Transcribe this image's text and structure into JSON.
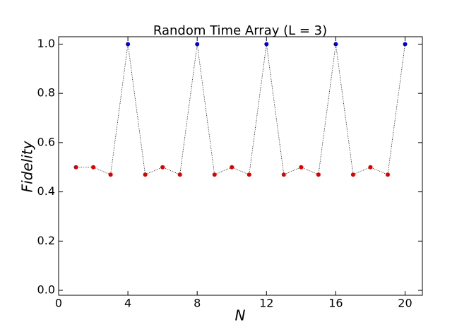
{
  "chart_data": {
    "type": "line",
    "title": "Random Time Array (L = 3)",
    "x_label": "N",
    "y_label": "Fidelity",
    "x": [
      1,
      2,
      3,
      4,
      5,
      6,
      7,
      8,
      9,
      10,
      11,
      12,
      13,
      14,
      15,
      16,
      17,
      18,
      19,
      20
    ],
    "series": [
      {
        "line_color": "#000000",
        "values": [
          0.5,
          0.5,
          0.47,
          1.0,
          0.47,
          0.5,
          0.47,
          1.0,
          0.47,
          0.5,
          0.47,
          1.0,
          0.47,
          0.5,
          0.47,
          1.0,
          0.47,
          0.5,
          0.47,
          1.0
        ],
        "point_colors": [
          "#dd0000",
          "#dd0000",
          "#dd0000",
          "#0000dd",
          "#dd0000",
          "#dd0000",
          "#dd0000",
          "#0000dd",
          "#dd0000",
          "#dd0000",
          "#dd0000",
          "#0000dd",
          "#dd0000",
          "#dd0000",
          "#dd0000",
          "#0000dd",
          "#dd0000",
          "#dd0000",
          "#dd0000",
          "#0000dd"
        ]
      }
    ],
    "xlim": [
      0,
      21
    ],
    "xticks": [
      0,
      4,
      8,
      12,
      16,
      20
    ],
    "ylim": [
      -0.02,
      1.03
    ],
    "yticks": [
      {
        "value": 0,
        "label": "0.0"
      },
      {
        "value": 0.2,
        "label": "0.2"
      },
      {
        "value": 0.4,
        "label": "0.4"
      },
      {
        "value": 0.6,
        "label": "0.6"
      },
      {
        "value": 0.8,
        "label": "0.8"
      },
      {
        "value": 1,
        "label": "1.0"
      }
    ],
    "grid": false
  }
}
